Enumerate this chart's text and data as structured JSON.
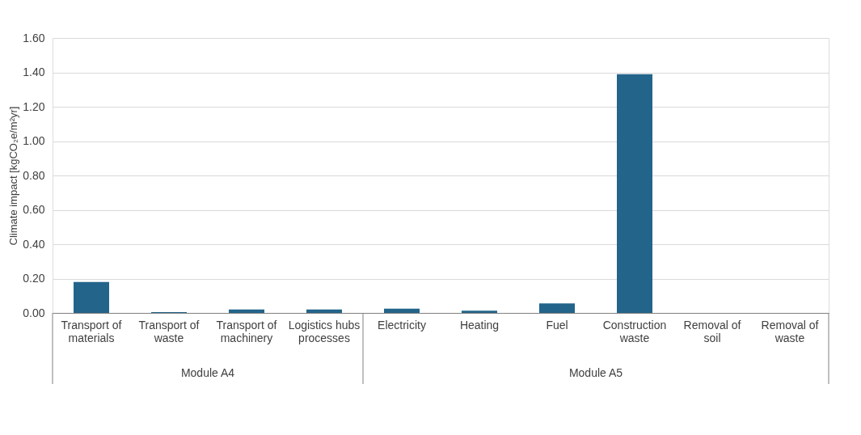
{
  "chart_data": {
    "type": "bar",
    "ylabel": "Climate impact  [kgCO₂e/m²yr]",
    "categories": [
      "Transport of materials",
      "Transport of waste",
      "Transport of machinery",
      "Logistics hubs processes",
      "Electricity",
      "Heating",
      "Fuel",
      "Construction waste",
      "Removal of soil",
      "Removal of waste"
    ],
    "values": [
      0.18,
      0.005,
      0.02,
      0.02,
      0.025,
      0.013,
      0.055,
      1.39,
      0,
      0
    ],
    "color": "#23648a",
    "ylim": [
      0,
      1.6
    ],
    "yticks": [
      {
        "value": 0,
        "label": "0.00"
      },
      {
        "value": 0.2,
        "label": "0.20"
      },
      {
        "value": 0.4,
        "label": "0.40"
      },
      {
        "value": 0.6,
        "label": "0.60"
      },
      {
        "value": 0.8,
        "label": "0.80"
      },
      {
        "value": 1.0,
        "label": "1.00"
      },
      {
        "value": 1.2,
        "label": "1.20"
      },
      {
        "value": 1.4,
        "label": "1.40"
      },
      {
        "value": 1.6,
        "label": "1.60"
      }
    ],
    "grid": "y",
    "annotations": [
      "Module A4",
      "Module A5"
    ]
  }
}
